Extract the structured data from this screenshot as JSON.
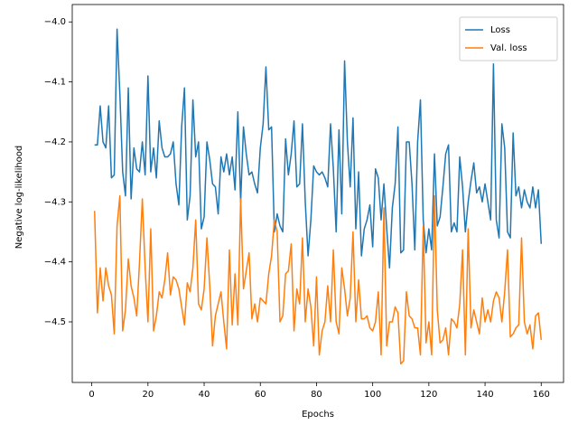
{
  "chart_data": {
    "type": "line",
    "xlabel": "Epochs",
    "ylabel": "Negative log-likelihood",
    "x": [
      1,
      2,
      3,
      4,
      5,
      6,
      7,
      8,
      9,
      10,
      11,
      12,
      13,
      14,
      15,
      16,
      17,
      18,
      19,
      20,
      21,
      22,
      23,
      24,
      25,
      26,
      27,
      28,
      29,
      30,
      31,
      32,
      33,
      34,
      35,
      36,
      37,
      38,
      39,
      40,
      41,
      42,
      43,
      44,
      45,
      46,
      47,
      48,
      49,
      50,
      51,
      52,
      53,
      54,
      55,
      56,
      57,
      58,
      59,
      60,
      61,
      62,
      63,
      64,
      65,
      66,
      67,
      68,
      69,
      70,
      71,
      72,
      73,
      74,
      75,
      76,
      77,
      78,
      79,
      80,
      81,
      82,
      83,
      84,
      85,
      86,
      87,
      88,
      89,
      90,
      91,
      92,
      93,
      94,
      95,
      96,
      97,
      98,
      99,
      100,
      101,
      102,
      103,
      104,
      105,
      106,
      107,
      108,
      109,
      110,
      111,
      112,
      113,
      114,
      115,
      116,
      117,
      118,
      119,
      120,
      121,
      122,
      123,
      124,
      125,
      126,
      127,
      128,
      129,
      130,
      131,
      132,
      133,
      134,
      135,
      136,
      137,
      138,
      139,
      140,
      141,
      142,
      143,
      144,
      145,
      146,
      147,
      148,
      149,
      150,
      151,
      152,
      153,
      154,
      155,
      156,
      157,
      158,
      159,
      160
    ],
    "series": [
      {
        "name": "Loss",
        "color": "#1f77b4",
        "values": [
          -4.205,
          -4.205,
          -4.14,
          -4.2,
          -4.21,
          -4.14,
          -4.26,
          -4.255,
          -4.012,
          -4.12,
          -4.25,
          -4.29,
          -4.11,
          -4.295,
          -4.21,
          -4.245,
          -4.25,
          -4.2,
          -4.255,
          -4.09,
          -4.25,
          -4.21,
          -4.26,
          -4.165,
          -4.21,
          -4.225,
          -4.225,
          -4.22,
          -4.2,
          -4.27,
          -4.305,
          -4.175,
          -4.11,
          -4.33,
          -4.29,
          -4.13,
          -4.225,
          -4.2,
          -4.345,
          -4.325,
          -4.2,
          -4.23,
          -4.27,
          -4.275,
          -4.32,
          -4.225,
          -4.25,
          -4.22,
          -4.255,
          -4.225,
          -4.28,
          -4.15,
          -4.3,
          -4.175,
          -4.22,
          -4.255,
          -4.25,
          -4.27,
          -4.285,
          -4.21,
          -4.17,
          -4.075,
          -4.18,
          -4.175,
          -4.35,
          -4.32,
          -4.34,
          -4.35,
          -4.195,
          -4.255,
          -4.22,
          -4.165,
          -4.275,
          -4.27,
          -4.17,
          -4.3,
          -4.39,
          -4.33,
          -4.24,
          -4.25,
          -4.255,
          -4.25,
          -4.26,
          -4.275,
          -4.17,
          -4.245,
          -4.35,
          -4.18,
          -4.32,
          -4.065,
          -4.2,
          -4.275,
          -4.16,
          -4.345,
          -4.25,
          -4.39,
          -4.345,
          -4.33,
          -4.305,
          -4.375,
          -4.245,
          -4.26,
          -4.33,
          -4.27,
          -4.345,
          -4.41,
          -4.31,
          -4.27,
          -4.175,
          -4.385,
          -4.38,
          -4.2,
          -4.2,
          -4.27,
          -4.38,
          -4.2,
          -4.13,
          -4.33,
          -4.385,
          -4.345,
          -4.38,
          -4.22,
          -4.34,
          -4.325,
          -4.275,
          -4.22,
          -4.205,
          -4.35,
          -4.335,
          -4.35,
          -4.225,
          -4.275,
          -4.35,
          -4.3,
          -4.265,
          -4.235,
          -4.285,
          -4.275,
          -4.3,
          -4.27,
          -4.3,
          -4.33,
          -4.07,
          -4.33,
          -4.36,
          -4.17,
          -4.21,
          -4.35,
          -4.36,
          -4.185,
          -4.29,
          -4.275,
          -4.31,
          -4.28,
          -4.3,
          -4.31,
          -4.275,
          -4.31,
          -4.28,
          -4.37
        ]
      },
      {
        "name": "Val. loss",
        "color": "#ff7f0e",
        "values": [
          -4.315,
          -4.485,
          -4.41,
          -4.465,
          -4.41,
          -4.44,
          -4.455,
          -4.52,
          -4.34,
          -4.29,
          -4.515,
          -4.48,
          -4.395,
          -4.44,
          -4.46,
          -4.49,
          -4.4,
          -4.295,
          -4.41,
          -4.5,
          -4.345,
          -4.515,
          -4.49,
          -4.45,
          -4.46,
          -4.43,
          -4.385,
          -4.455,
          -4.425,
          -4.43,
          -4.445,
          -4.475,
          -4.505,
          -4.435,
          -4.45,
          -4.41,
          -4.33,
          -4.47,
          -4.48,
          -4.445,
          -4.36,
          -4.44,
          -4.54,
          -4.49,
          -4.47,
          -4.45,
          -4.5,
          -4.545,
          -4.38,
          -4.505,
          -4.42,
          -4.505,
          -4.295,
          -4.445,
          -4.415,
          -4.385,
          -4.495,
          -4.47,
          -4.5,
          -4.46,
          -4.465,
          -4.47,
          -4.42,
          -4.39,
          -4.33,
          -4.35,
          -4.5,
          -4.49,
          -4.42,
          -4.415,
          -4.37,
          -4.515,
          -4.445,
          -4.47,
          -4.36,
          -4.5,
          -4.445,
          -4.475,
          -4.54,
          -4.425,
          -4.555,
          -4.515,
          -4.5,
          -4.44,
          -4.5,
          -4.38,
          -4.5,
          -4.52,
          -4.41,
          -4.445,
          -4.49,
          -4.46,
          -4.35,
          -4.5,
          -4.43,
          -4.495,
          -4.495,
          -4.49,
          -4.51,
          -4.515,
          -4.5,
          -4.45,
          -4.555,
          -4.31,
          -4.54,
          -4.5,
          -4.5,
          -4.475,
          -4.485,
          -4.57,
          -4.565,
          -4.45,
          -4.49,
          -4.495,
          -4.51,
          -4.51,
          -4.555,
          -4.34,
          -4.535,
          -4.5,
          -4.555,
          -4.29,
          -4.48,
          -4.535,
          -4.53,
          -4.51,
          -4.555,
          -4.495,
          -4.5,
          -4.51,
          -4.47,
          -4.38,
          -4.555,
          -4.345,
          -4.51,
          -4.48,
          -4.5,
          -4.52,
          -4.46,
          -4.5,
          -4.48,
          -4.5,
          -4.465,
          -4.45,
          -4.46,
          -4.5,
          -4.45,
          -4.38,
          -4.525,
          -4.52,
          -4.51,
          -4.505,
          -4.36,
          -4.5,
          -4.52,
          -4.505,
          -4.545,
          -4.49,
          -4.485,
          -4.53
        ]
      }
    ],
    "xlim": [
      -6.95,
      167.95
    ],
    "ylim": [
      -4.601,
      -3.971
    ],
    "xticks": [
      0,
      20,
      40,
      60,
      80,
      100,
      120,
      140,
      160
    ],
    "yticks": [
      {
        "value": -4.5,
        "label": "−4.5"
      },
      {
        "value": -4.4,
        "label": "−4.4"
      },
      {
        "value": -4.3,
        "label": "−4.3"
      },
      {
        "value": -4.2,
        "label": "−4.2"
      },
      {
        "value": -4.1,
        "label": "−4.1"
      },
      {
        "value": -4.0,
        "label": "−4.0"
      }
    ],
    "legend": "upper right"
  }
}
